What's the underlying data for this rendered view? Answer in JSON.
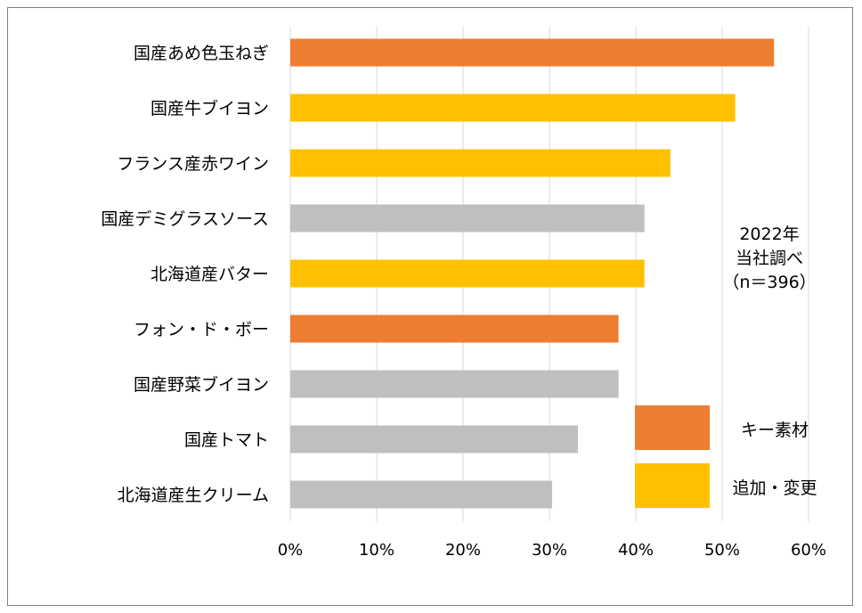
{
  "chart_data": {
    "type": "bar",
    "orientation": "horizontal",
    "categories": [
      "国産あめ色玉ねぎ",
      "国産牛ブイヨン",
      "フランス産赤ワイン",
      "国産デミグラスソース",
      "北海道産バター",
      "フォン・ド・ボー",
      "国産野菜ブイヨン",
      "国産トマト",
      "北海道産生クリーム"
    ],
    "values": [
      56,
      51.5,
      44,
      41,
      41,
      38,
      38,
      33.3,
      30.3
    ],
    "value_unit": "%",
    "bar_groups": [
      "key",
      "added",
      "added",
      "other",
      "added",
      "key",
      "other",
      "other",
      "other"
    ],
    "group_colors": {
      "key": "#ED7D31",
      "added": "#FFC000",
      "other": "#BFBFBF"
    },
    "xlim": [
      0,
      60
    ],
    "xticks": [
      0,
      10,
      20,
      30,
      40,
      50,
      60
    ],
    "xtick_labels": [
      "0%",
      "10%",
      "20%",
      "30%",
      "40%",
      "50%",
      "60%"
    ],
    "grid": "vertical",
    "legend": {
      "placement": "bottom-right",
      "entries": [
        {
          "group": "key",
          "label": "キー素材"
        },
        {
          "group": "added",
          "label": "追加・変更"
        }
      ]
    },
    "annotation": [
      "2022年",
      "当社調べ",
      "（n＝396）"
    ]
  }
}
